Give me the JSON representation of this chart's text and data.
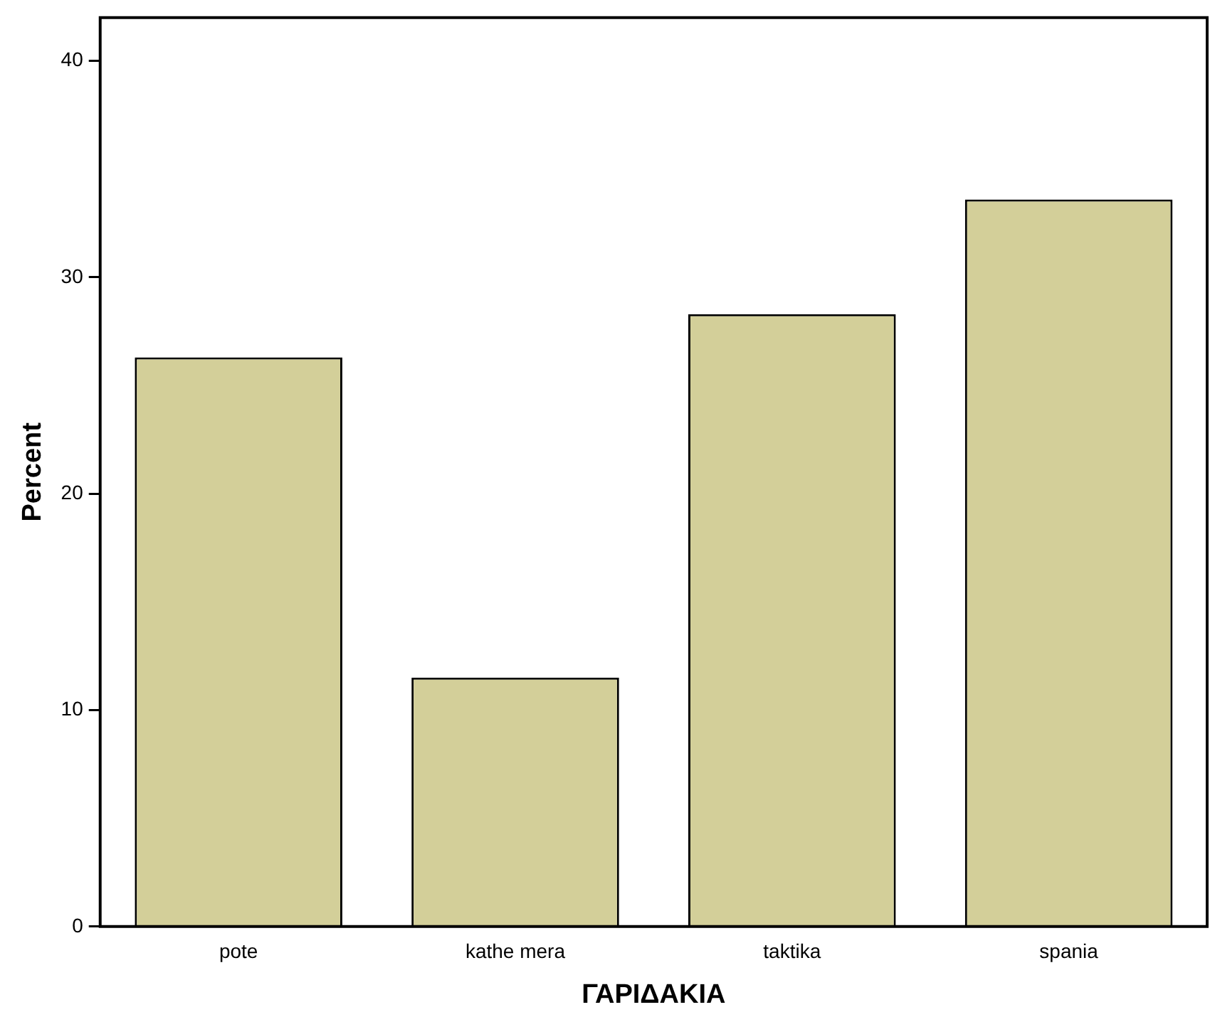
{
  "chart_data": {
    "type": "bar",
    "xlabel": "ΓΑΡΙΔΑΚΙΑ",
    "ylabel": "Percent",
    "categories": [
      "pote",
      "kathe mera",
      "taktika",
      "spania"
    ],
    "values": [
      26.3,
      11.5,
      28.3,
      33.6
    ],
    "color": "#d3cf99",
    "ylim": [
      0,
      42
    ],
    "yticks": [
      0,
      10,
      20,
      30,
      40
    ],
    "grid": false,
    "legend": false
  }
}
